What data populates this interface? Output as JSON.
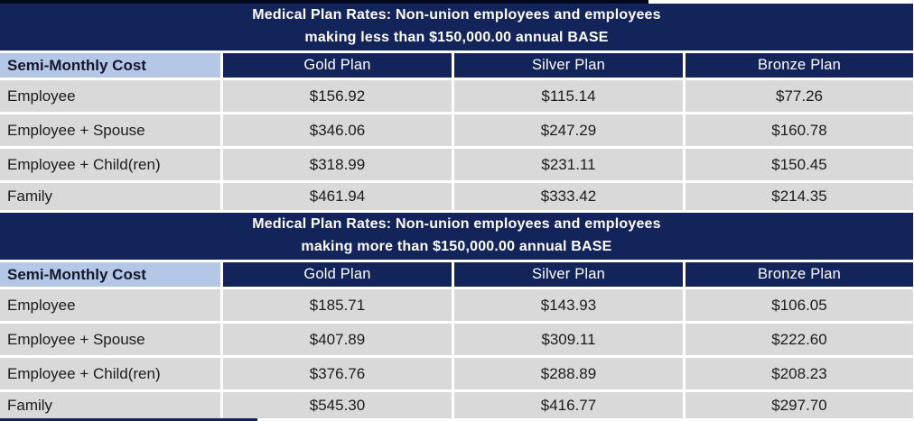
{
  "colors": {
    "navy": "#13245b",
    "light_blue": "#b4c7e7",
    "row_grey": "#d9d9d9",
    "gridline_white": "#ffffff",
    "text_dark": "#1b1b1b",
    "text_white": "#ffffff",
    "top_edge_black": "#05091c"
  },
  "tables": [
    {
      "title_line1": "Medical Plan Rates: Non-union employees and employees",
      "title_line2": "making less than $150,000.00 annual BASE",
      "columns": [
        "Semi-Monthly Cost",
        "Gold Plan",
        "Silver Plan",
        "Bronze Plan"
      ],
      "rows": [
        {
          "label": "Employee",
          "gold": "$156.92",
          "silver": "$115.14",
          "bronze": "$77.26"
        },
        {
          "label": "Employee + Spouse",
          "gold": "$346.06",
          "silver": "$247.29",
          "bronze": "$160.78"
        },
        {
          "label": "Employee + Child(ren)",
          "gold": "$318.99",
          "silver": "$231.11",
          "bronze": "$150.45"
        },
        {
          "label": "Family",
          "gold": "$461.94",
          "silver": "$333.42",
          "bronze": "$214.35"
        }
      ]
    },
    {
      "title_line1": "Medical Plan Rates: Non-union employees and employees",
      "title_line2": "making more than $150,000.00 annual BASE",
      "columns": [
        "Semi-Monthly Cost",
        "Gold Plan",
        "Silver Plan",
        "Bronze Plan"
      ],
      "rows": [
        {
          "label": "Employee",
          "gold": "$185.71",
          "silver": "$143.93",
          "bronze": "$106.05"
        },
        {
          "label": "Employee + Spouse",
          "gold": "$407.89",
          "silver": "$309.11",
          "bronze": "$222.60"
        },
        {
          "label": "Employee + Child(ren)",
          "gold": "$376.76",
          "silver": "$288.89",
          "bronze": "$208.23"
        },
        {
          "label": "Family",
          "gold": "$545.30",
          "silver": "$416.77",
          "bronze": "$297.70"
        }
      ]
    }
  ]
}
